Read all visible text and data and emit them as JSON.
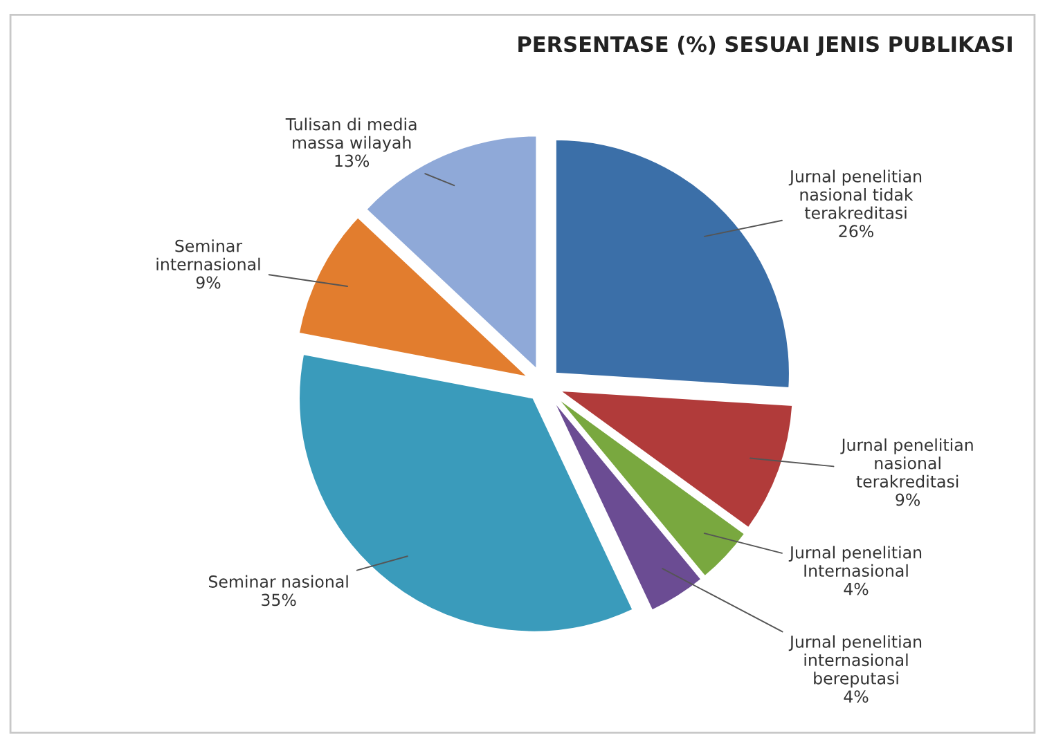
{
  "chart_data": {
    "type": "pie",
    "title": "PERSENTASE (%) SESUAI JENIS PUBLIKASI",
    "categories": [
      "Jurnal penelitian\nnasional tidak\nterakreditasi",
      "Jurnal penelitian\nnasional\nterakreditasi",
      "Jurnal penelitian\nInternasional",
      "Jurnal penelitian\ninternasional\nbereputasi",
      "Seminar nasional",
      "Seminar\ninternasional",
      "Tulisan di media\nmassa wilayah"
    ],
    "values": [
      26,
      9,
      4,
      4,
      35,
      9,
      13
    ],
    "colors": [
      "#3b6fa8",
      "#b13b3a",
      "#79a83f",
      "#6b4c93",
      "#3a9bbb",
      "#e27d2e",
      "#8fa9d8"
    ],
    "value_labels": [
      "26%",
      "9%",
      "4%",
      "4%",
      "35%",
      "9%",
      "13%"
    ],
    "legend": false
  }
}
